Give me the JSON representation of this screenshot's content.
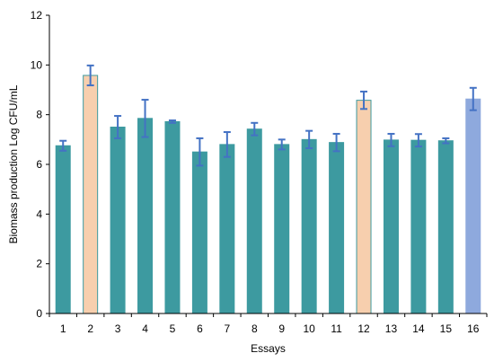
{
  "chart_data": {
    "type": "bar",
    "xlabel": "Essays",
    "ylabel": "Biomass production Log CFU/mL",
    "ylim": [
      0,
      12
    ],
    "yticks": [
      0,
      2,
      4,
      6,
      8,
      10,
      12
    ],
    "grid": false,
    "legend": "none",
    "categories": [
      "1",
      "2",
      "3",
      "4",
      "5",
      "6",
      "7",
      "8",
      "9",
      "10",
      "11",
      "12",
      "13",
      "14",
      "15",
      "16"
    ],
    "values": [
      6.75,
      9.58,
      7.5,
      7.85,
      7.72,
      6.5,
      6.8,
      7.42,
      6.8,
      7.0,
      6.88,
      8.58,
      6.98,
      6.97,
      6.95,
      8.63
    ],
    "errors": [
      0.2,
      0.4,
      0.45,
      0.75,
      0.05,
      0.55,
      0.5,
      0.25,
      0.2,
      0.35,
      0.35,
      0.35,
      0.25,
      0.25,
      0.1,
      0.45
    ],
    "bar_colors": [
      "#3d9aa0",
      "#f7cfae",
      "#3d9aa0",
      "#3d9aa0",
      "#3d9aa0",
      "#3d9aa0",
      "#3d9aa0",
      "#3d9aa0",
      "#3d9aa0",
      "#3d9aa0",
      "#3d9aa0",
      "#f7cfae",
      "#3d9aa0",
      "#3d9aa0",
      "#3d9aa0",
      "#8ea9dd"
    ],
    "bar_outline_colors": [
      "#3d9aa0",
      "#3d9aa0",
      "#3d9aa0",
      "#3d9aa0",
      "#3d9aa0",
      "#3d9aa0",
      "#3d9aa0",
      "#3d9aa0",
      "#3d9aa0",
      "#3d9aa0",
      "#3d9aa0",
      "#3d9aa0",
      "#3d9aa0",
      "#3d9aa0",
      "#3d9aa0",
      "#8ea9dd"
    ],
    "error_bar_color": "#4472c4"
  }
}
